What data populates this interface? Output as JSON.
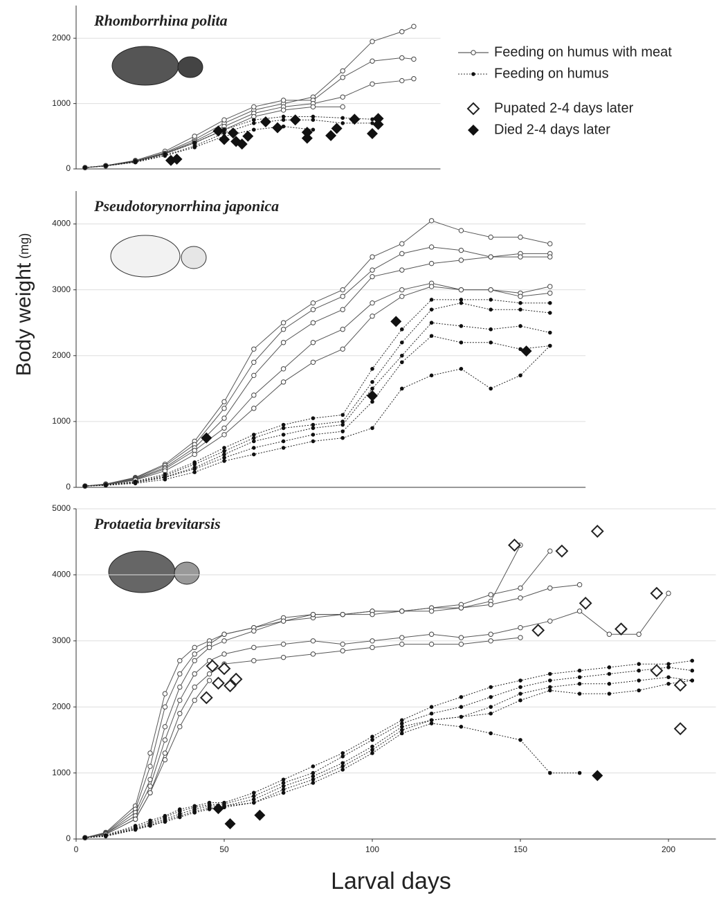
{
  "axis_titles": {
    "y": "Body weight",
    "y_unit": "(mg)",
    "x": "Larval days"
  },
  "legend": [
    {
      "label": "Feeding on humus with meat",
      "style": "open"
    },
    {
      "label": "Feeding on humus",
      "style": "filled"
    },
    {
      "label": "Pupated 2-4 days later",
      "style": "pupated"
    },
    {
      "label": "Died 2-4 days later",
      "style": "died"
    }
  ],
  "chart_data": [
    {
      "type": "line",
      "title": "Rhomborrhina polita",
      "xlim": [
        0,
        123
      ],
      "ylim": [
        0,
        2500
      ],
      "yticks": [
        0,
        1000,
        2000
      ],
      "x": [
        3,
        10,
        20,
        30,
        40,
        50,
        60,
        70,
        80,
        90,
        100,
        110,
        114
      ],
      "series": [
        {
          "style": "open",
          "values": [
            20,
            50,
            120,
            250,
            450,
            700,
            900,
            1000,
            1100,
            1500,
            1950,
            2100,
            2180
          ]
        },
        {
          "style": "open",
          "values": [
            20,
            50,
            130,
            270,
            500,
            750,
            950,
            1050,
            1050,
            1400,
            1650,
            1700,
            1680
          ]
        },
        {
          "style": "open",
          "values": [
            20,
            50,
            120,
            240,
            420,
            650,
            850,
            950,
            1000,
            1100,
            1300,
            1350,
            1380
          ]
        },
        {
          "style": "open",
          "values": [
            20,
            45,
            110,
            230,
            400,
            600,
            800,
            900,
            950,
            950,
            null,
            null,
            null
          ]
        },
        {
          "style": "filled",
          "values": [
            20,
            50,
            120,
            230,
            400,
            600,
            750,
            800,
            800,
            780,
            760,
            null,
            null
          ]
        },
        {
          "style": "filled",
          "values": [
            20,
            45,
            110,
            210,
            350,
            550,
            700,
            750,
            750,
            700,
            700,
            null,
            null
          ]
        },
        {
          "style": "filled",
          "values": [
            20,
            45,
            100,
            200,
            330,
            500,
            600,
            650,
            600,
            null,
            null,
            null,
            null
          ]
        }
      ],
      "died": {
        "x": [
          32,
          34,
          48,
          50,
          53,
          54,
          56,
          58,
          64,
          68,
          74,
          78,
          78,
          86,
          88,
          94,
          100,
          102,
          102
        ],
        "values": [
          130,
          150,
          580,
          450,
          550,
          420,
          380,
          500,
          720,
          630,
          750,
          470,
          560,
          510,
          620,
          760,
          540,
          680,
          770
        ]
      }
    },
    {
      "type": "line",
      "title": "Pseudotorynorrhina japonica",
      "xlim": [
        0,
        172
      ],
      "ylim": [
        0,
        4500
      ],
      "yticks": [
        0,
        1000,
        2000,
        3000,
        4000
      ],
      "x": [
        3,
        10,
        20,
        30,
        40,
        50,
        60,
        70,
        80,
        90,
        100,
        110,
        120,
        130,
        140,
        150,
        160
      ],
      "series": [
        {
          "style": "open",
          "values": [
            20,
            50,
            150,
            350,
            700,
            1300,
            2100,
            2500,
            2800,
            3000,
            3500,
            3700,
            4050,
            3900,
            3800,
            3800,
            3700
          ]
        },
        {
          "style": "open",
          "values": [
            20,
            50,
            140,
            330,
            650,
            1200,
            1900,
            2400,
            2700,
            2900,
            3300,
            3550,
            3650,
            3600,
            3500,
            3550,
            3550
          ]
        },
        {
          "style": "open",
          "values": [
            20,
            45,
            130,
            300,
            600,
            1050,
            1700,
            2200,
            2500,
            2700,
            3200,
            3300,
            3400,
            3450,
            3500,
            3500,
            3500
          ]
        },
        {
          "style": "open",
          "values": [
            20,
            45,
            120,
            280,
            560,
            900,
            1400,
            1800,
            2200,
            2400,
            2800,
            3000,
            3100,
            3000,
            3000,
            2950,
            3050
          ]
        },
        {
          "style": "open",
          "values": [
            20,
            40,
            110,
            250,
            500,
            800,
            1200,
            1600,
            1900,
            2100,
            2600,
            2900,
            3050,
            3000,
            3000,
            2900,
            2950
          ]
        },
        {
          "style": "filled",
          "values": [
            20,
            40,
            90,
            200,
            380,
            600,
            800,
            950,
            1050,
            1100,
            1800,
            2400,
            2850,
            2850,
            2850,
            2800,
            2800
          ]
        },
        {
          "style": "filled",
          "values": [
            20,
            35,
            80,
            180,
            350,
            550,
            750,
            900,
            950,
            1000,
            1600,
            2200,
            2700,
            2800,
            2700,
            2700,
            2650
          ]
        },
        {
          "style": "filled",
          "values": [
            20,
            35,
            75,
            160,
            300,
            500,
            700,
            800,
            900,
            950,
            1500,
            2000,
            2500,
            2450,
            2400,
            2450,
            2350
          ]
        },
        {
          "style": "filled",
          "values": [
            20,
            30,
            70,
            150,
            280,
            450,
            600,
            700,
            800,
            850,
            1300,
            1900,
            2300,
            2200,
            2200,
            2100,
            2150
          ]
        },
        {
          "style": "filled",
          "values": [
            20,
            30,
            60,
            120,
            230,
            400,
            500,
            600,
            700,
            750,
            900,
            1500,
            1700,
            1800,
            1500,
            1700,
            2150
          ]
        }
      ],
      "died": {
        "x": [
          44,
          100,
          108,
          152
        ],
        "values": [
          750,
          1390,
          2520,
          2070
        ]
      }
    },
    {
      "type": "line",
      "title": "Protaetia brevitarsis",
      "xlim": [
        0,
        216
      ],
      "ylim": [
        0,
        5000
      ],
      "yticks": [
        0,
        1000,
        2000,
        3000,
        4000,
        5000
      ],
      "xticks": [
        0,
        50,
        100,
        150,
        200
      ],
      "x": [
        3,
        10,
        20,
        25,
        30,
        35,
        40,
        45,
        50,
        60,
        70,
        80,
        90,
        100,
        110,
        120,
        130,
        140,
        150,
        160,
        170,
        180,
        190,
        200,
        208
      ],
      "series": [
        {
          "style": "open",
          "values": [
            20,
            100,
            500,
            1300,
            2200,
            2700,
            2900,
            3000,
            3100,
            3200,
            3300,
            3350,
            3400,
            3450,
            3450,
            3500,
            3500,
            3600,
            4450,
            null,
            null,
            null,
            null,
            null,
            null
          ]
        },
        {
          "style": "open",
          "values": [
            20,
            90,
            450,
            1100,
            2000,
            2500,
            2800,
            2950,
            3100,
            3200,
            3350,
            3400,
            3400,
            3450,
            3450,
            3500,
            3550,
            3700,
            3800,
            4360,
            null,
            null,
            null,
            null,
            null
          ]
        },
        {
          "style": "open",
          "values": [
            20,
            80,
            400,
            900,
            1700,
            2300,
            2700,
            2900,
            3000,
            3150,
            3300,
            3400,
            3400,
            3400,
            3450,
            3450,
            3500,
            3550,
            3650,
            3800,
            3850,
            null,
            null,
            null,
            null
          ]
        },
        {
          "style": "open",
          "values": [
            20,
            80,
            350,
            800,
            1500,
            2100,
            2500,
            2700,
            2800,
            2900,
            2950,
            3000,
            2950,
            3000,
            3050,
            3100,
            3050,
            3100,
            3200,
            3300,
            3450,
            3100,
            3100,
            3720,
            null
          ]
        },
        {
          "style": "open",
          "values": [
            20,
            70,
            300,
            700,
            1300,
            1900,
            2300,
            2500,
            2650,
            2700,
            2750,
            2800,
            2850,
            2900,
            2950,
            2950,
            2950,
            3000,
            3050,
            null,
            null,
            null,
            null,
            null,
            null
          ]
        },
        {
          "style": "open",
          "values": [
            20,
            70,
            300,
            700,
            1200,
            1700,
            2100,
            2400,
            null,
            null,
            null,
            null,
            null,
            null,
            null,
            null,
            null,
            null,
            null,
            null,
            null,
            null,
            null,
            null,
            null
          ]
        },
        {
          "style": "filled",
          "values": [
            20,
            60,
            200,
            280,
            350,
            450,
            500,
            550,
            550,
            700,
            900,
            1100,
            1300,
            1550,
            1800,
            2000,
            2150,
            2300,
            2400,
            2500,
            2550,
            2600,
            2650,
            2650,
            2700
          ]
        },
        {
          "style": "filled",
          "values": [
            20,
            50,
            180,
            250,
            330,
            420,
            480,
            520,
            530,
            650,
            850,
            1000,
            1250,
            1500,
            1750,
            1900,
            2000,
            2150,
            2300,
            2400,
            2450,
            2500,
            2550,
            2600,
            2550
          ]
        },
        {
          "style": "filled",
          "values": [
            20,
            50,
            160,
            230,
            300,
            380,
            450,
            500,
            500,
            600,
            800,
            950,
            1150,
            1400,
            1700,
            1800,
            1850,
            2000,
            2200,
            2300,
            2350,
            2350,
            2400,
            2450,
            2400
          ]
        },
        {
          "style": "filled",
          "values": [
            20,
            40,
            150,
            210,
            280,
            350,
            420,
            470,
            480,
            550,
            750,
            900,
            1100,
            1350,
            1650,
            1800,
            1850,
            1900,
            2100,
            2250,
            2200,
            2200,
            2250,
            2350,
            2400
          ]
        },
        {
          "style": "filled",
          "values": [
            20,
            40,
            140,
            200,
            260,
            330,
            400,
            450,
            500,
            550,
            700,
            850,
            1050,
            1300,
            1600,
            1750,
            1700,
            1600,
            1500,
            1000,
            1000,
            null,
            null,
            null,
            null
          ]
        }
      ],
      "pupated": {
        "x": [
          44,
          46,
          48,
          50,
          52,
          54,
          148,
          164,
          176,
          172,
          156,
          184,
          196,
          196,
          204,
          204
        ],
        "values": [
          2140,
          2620,
          2360,
          2580,
          2320,
          2420,
          4450,
          4360,
          4660,
          3570,
          3160,
          3180,
          3720,
          2550,
          2330,
          1670
        ]
      },
      "died": {
        "x": [
          48,
          52,
          62,
          176
        ],
        "values": [
          460,
          230,
          360,
          960
        ]
      }
    }
  ]
}
